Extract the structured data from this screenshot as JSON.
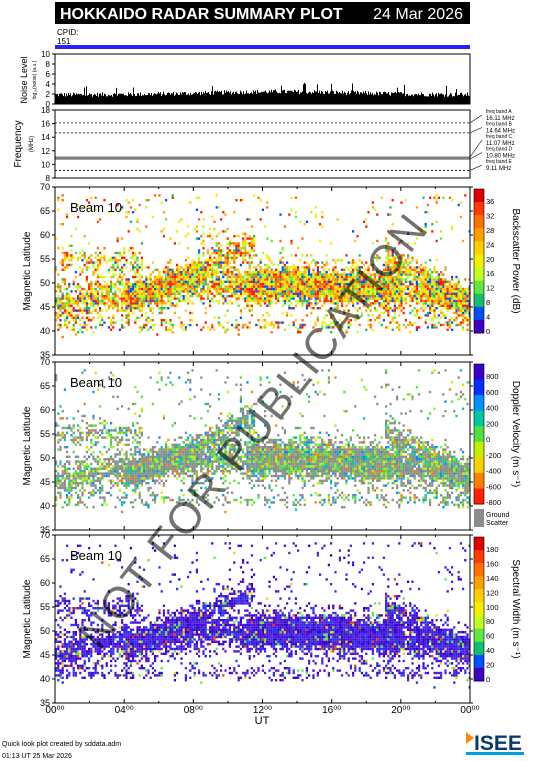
{
  "header": {
    "title": "HOKKAIDO RADAR SUMMARY PLOT",
    "date": "24 Mar 2026",
    "cpid_label": "CPID:",
    "cpid_value": "151"
  },
  "noise": {
    "ylabel": "Noise Level",
    "ylabel_sub": "log₁₀(noise) (a.u.)",
    "yticks": [
      "10",
      "8",
      "6",
      "4",
      "2",
      "0"
    ],
    "ylim": [
      0,
      10
    ]
  },
  "frequency": {
    "ylabel": "Frequency",
    "ylabel_unit": "(MHz)",
    "yticks": [
      "18",
      "16",
      "14",
      "12",
      "10",
      "8"
    ],
    "ylim": [
      8,
      18
    ],
    "bands": [
      {
        "name": "freq band A",
        "mhz": "16.11 MHz",
        "value": 16.11
      },
      {
        "name": "freq band B",
        "mhz": "14.64 MHz",
        "value": 14.64
      },
      {
        "name": "freq band C",
        "mhz": "11.07 MHz",
        "value": 11.07
      },
      {
        "name": "freq band D",
        "mhz": "10.80 MHz",
        "value": 10.8
      },
      {
        "name": "freq band E",
        "mhz": "9.11 MHz",
        "value": 9.11
      }
    ]
  },
  "panels": [
    {
      "id": "power",
      "beam": "Beam 10",
      "ylabel": "Magnetic Latitude",
      "cbar_label": "Backscatter Power (dB)",
      "cbar_ticks": [
        "36",
        "32",
        "28",
        "24",
        "20",
        "16",
        "12",
        "8",
        "4",
        "0"
      ],
      "cbar_colors": [
        "#e00000",
        "#ff3a00",
        "#ff7000",
        "#ffa000",
        "#ffcf00",
        "#f4f000",
        "#c0ff20",
        "#60e840",
        "#10c070",
        "#0050ff",
        "#4000c0"
      ]
    },
    {
      "id": "velocity",
      "beam": "Beam 10",
      "ylabel": "Magnetic Latitude",
      "cbar_label": "Doppler Velocity (m s⁻¹)",
      "cbar_ticks": [
        "800",
        "600",
        "400",
        "200",
        "0",
        "-200",
        "-400",
        "-600",
        "-800"
      ],
      "cbar_colors": [
        "#3a00c8",
        "#0030ff",
        "#0090ff",
        "#00c8a0",
        "#50e040",
        "#c0f000",
        "#ffd000",
        "#ff8000",
        "#ff2000"
      ],
      "ground_label_1": "Ground",
      "ground_label_2": "Scatter"
    },
    {
      "id": "width",
      "beam": "Beam 10",
      "ylabel": "Magnetic Latitude",
      "cbar_label": "Spectral Width (m s⁻¹)",
      "cbar_ticks": [
        "180",
        "160",
        "140",
        "120",
        "100",
        "80",
        "60",
        "40",
        "20",
        "0"
      ],
      "cbar_colors": [
        "#e00000",
        "#ff3a00",
        "#ff7000",
        "#ffa000",
        "#ffcf00",
        "#f4f000",
        "#c0ff20",
        "#60e840",
        "#10c070",
        "#0050ff",
        "#4000c0"
      ]
    }
  ],
  "latitude_ticks": [
    "70",
    "65",
    "60",
    "55",
    "50",
    "45",
    "40",
    "35"
  ],
  "time_axis": {
    "xlabel": "UT",
    "ticks": [
      "00⁰⁰",
      "04⁰⁰",
      "08⁰⁰",
      "12⁰⁰",
      "16⁰⁰",
      "20⁰⁰",
      "00⁰⁰"
    ]
  },
  "footer": {
    "line1": "Quick look plot created by sddata.adm",
    "line2": "01:13 UT 25 Mar 2026",
    "logo_text": "ISEE"
  },
  "watermark": "NOT FOR PUBLICATION",
  "chart_data": {
    "type": "heatmap",
    "title": "HOKKAIDO RADAR SUMMARY PLOT",
    "xlabel": "UT",
    "ylabel": "Magnetic Latitude",
    "xlim": [
      0,
      24
    ],
    "ylim": [
      35,
      70
    ],
    "panels": [
      "Backscatter Power (dB)",
      "Doppler Velocity (m s⁻¹)",
      "Spectral Width (m s⁻¹)"
    ],
    "colorbar_ranges": {
      "power": [
        0,
        38
      ],
      "velocity": [
        -800,
        800
      ],
      "width": [
        0,
        180
      ]
    },
    "frequency_bands_mhz": [
      16.11,
      14.64,
      11.07,
      10.8,
      9.11
    ]
  }
}
